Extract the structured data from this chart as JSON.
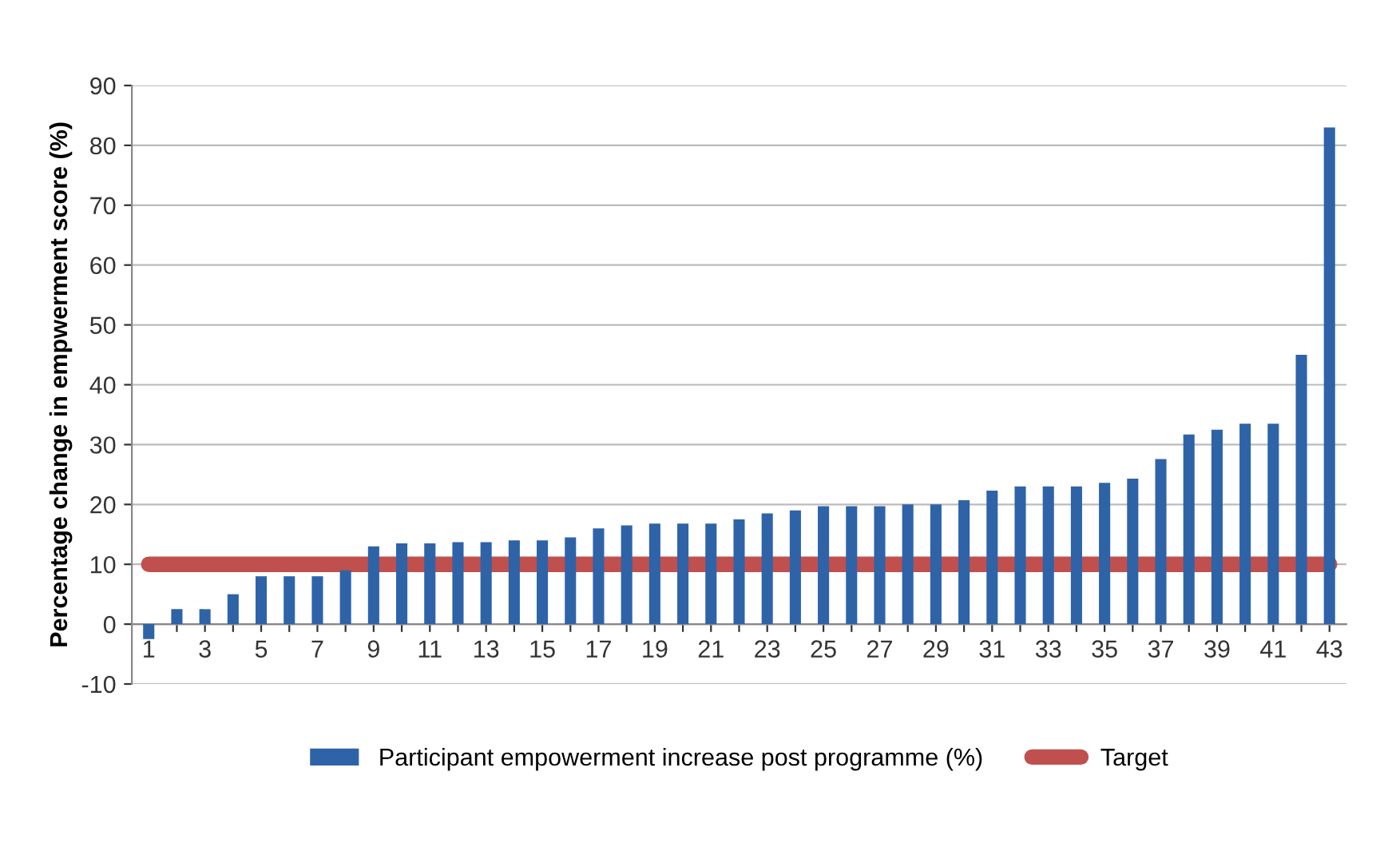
{
  "chart_data": {
    "type": "bar",
    "ylabel": "Percentage change in empwerment score (%)",
    "categories": [
      "1",
      null,
      "3",
      null,
      "5",
      null,
      "7",
      null,
      "9",
      null,
      "11",
      null,
      "13",
      null,
      "15",
      null,
      "17",
      null,
      "19",
      null,
      "21",
      null,
      "23",
      null,
      "25",
      null,
      "27",
      null,
      "29",
      null,
      "31",
      null,
      "33",
      null,
      "35",
      null,
      "37",
      null,
      "39",
      null,
      "41",
      null,
      "43"
    ],
    "series": [
      {
        "name": "Participant empowerment increase post programme (%)",
        "color": "#2e63a8",
        "values": [
          -2.5,
          2.5,
          2.5,
          5,
          8,
          8,
          8,
          9,
          13,
          13.5,
          13.5,
          13.7,
          13.7,
          14,
          14,
          14.5,
          16,
          16.5,
          16.8,
          16.8,
          16.8,
          17.5,
          18.5,
          19,
          19.7,
          19.7,
          19.7,
          20,
          20,
          20.7,
          22.3,
          23,
          23,
          23,
          23.6,
          24.3,
          27.6,
          31.7,
          32.5,
          33.5,
          33.5,
          45,
          83
        ]
      },
      {
        "name": "Target",
        "color": "#c0504d",
        "type": "line",
        "values": [
          10,
          10,
          10,
          10,
          10,
          10,
          10,
          10,
          10,
          10,
          10,
          10,
          10,
          10,
          10,
          10,
          10,
          10,
          10,
          10,
          10,
          10,
          10,
          10,
          10,
          10,
          10,
          10,
          10,
          10,
          10,
          10,
          10,
          10,
          10,
          10,
          10,
          10,
          10,
          10,
          10,
          10,
          10
        ]
      }
    ],
    "ylim": [
      -10,
      90
    ],
    "yticks": [
      -10,
      0,
      10,
      20,
      30,
      40,
      50,
      60,
      70,
      80,
      90
    ],
    "grid": "y",
    "legend": "bottom"
  }
}
